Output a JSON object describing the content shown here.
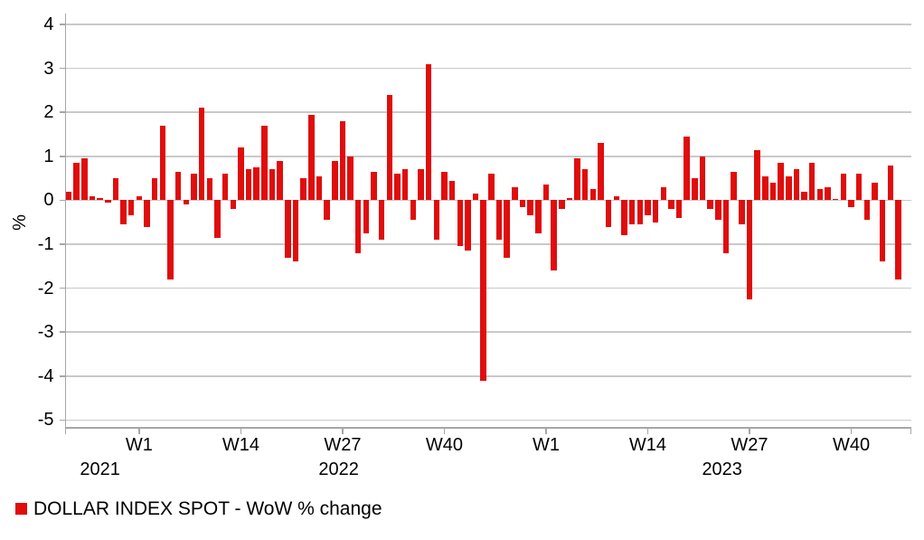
{
  "legend": {
    "label": "DOLLAR INDEX SPOT - WoW % change"
  },
  "colors": {
    "bar": "#e00d0d",
    "gridline": "#c9c9c9",
    "axis": "#a6a6a6",
    "text": "#000000",
    "background": "#ffffff"
  },
  "chart_data": {
    "type": "bar",
    "title": "",
    "ylabel": "%",
    "xlabel": "",
    "ylim": [
      -5,
      4
    ],
    "yticks": [
      4,
      3,
      2,
      1,
      0,
      -1,
      -2,
      -3,
      -4,
      -5
    ],
    "grid": "horizontal",
    "legend_position": "bottom-left",
    "series_name": "DOLLAR INDEX SPOT - WoW % change",
    "unit": "% week-over-week change",
    "groups": [
      {
        "year": "2021",
        "first_week": 44,
        "last_week": 52,
        "values": [
          0.2,
          0.85,
          0.95,
          0.1,
          0.05,
          -0.05,
          0.5,
          -0.55,
          -0.35
        ]
      },
      {
        "year": "2022",
        "first_week": 1,
        "last_week": 52,
        "values": [
          0.1,
          -0.6,
          0.5,
          1.7,
          -1.8,
          0.65,
          -0.1,
          0.6,
          2.1,
          0.5,
          -0.85,
          0.6,
          -0.2,
          1.2,
          0.7,
          0.75,
          1.7,
          0.7,
          0.9,
          -1.3,
          -1.4,
          0.5,
          1.95,
          0.55,
          -0.45,
          0.9,
          1.8,
          1.0,
          -1.2,
          -0.75,
          0.65,
          -0.9,
          2.4,
          0.6,
          0.7,
          -0.45,
          0.7,
          3.1,
          -0.9,
          0.65,
          0.45,
          -1.05,
          -1.15,
          0.15,
          -4.1,
          0.6,
          -0.9,
          -1.3,
          0.3,
          -0.15,
          -0.35,
          -0.75
        ]
      },
      {
        "year": "2023",
        "first_week": 1,
        "last_week": 46,
        "values": [
          0.35,
          -1.6,
          -0.2,
          0.05,
          0.95,
          0.7,
          0.25,
          1.3,
          -0.6,
          0.1,
          -0.8,
          -0.55,
          -0.55,
          -0.35,
          -0.5,
          0.3,
          -0.2,
          -0.4,
          1.45,
          0.5,
          1.0,
          -0.2,
          -0.45,
          -1.2,
          0.65,
          -0.55,
          -2.25,
          1.15,
          0.55,
          0.4,
          0.85,
          0.55,
          0.7,
          0.2,
          0.85,
          0.25,
          0.3,
          0.02,
          0.6,
          -0.15,
          0.6,
          -0.45,
          0.4,
          -1.4,
          0.8,
          -1.8
        ]
      }
    ],
    "xticks": [
      {
        "label": "W1",
        "year": "2022",
        "week": 1
      },
      {
        "label": "W14",
        "year": "2022",
        "week": 14
      },
      {
        "label": "W27",
        "year": "2022",
        "week": 27
      },
      {
        "label": "W40",
        "year": "2022",
        "week": 40
      },
      {
        "label": "W1",
        "year": "2023",
        "week": 1
      },
      {
        "label": "W14",
        "year": "2023",
        "week": 14
      },
      {
        "label": "W27",
        "year": "2023",
        "week": 27
      },
      {
        "label": "W40",
        "year": "2023",
        "week": 40
      }
    ],
    "year_labels": [
      "2021",
      "2022",
      "2023"
    ]
  }
}
